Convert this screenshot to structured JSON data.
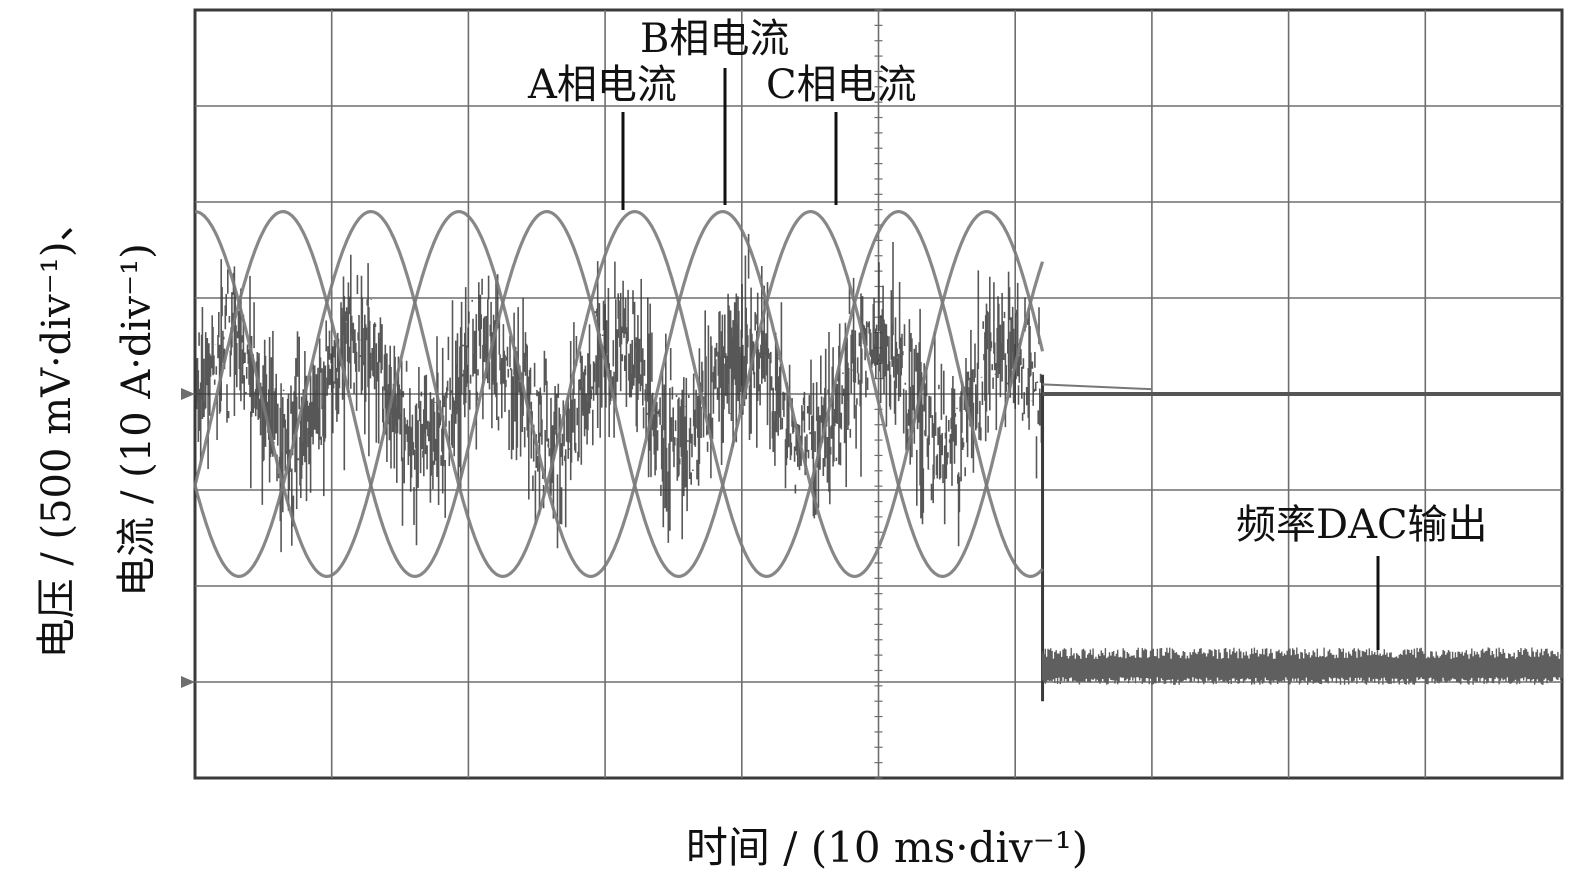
{
  "chart_data": {
    "type": "line",
    "title": "",
    "xlabel": "时间 / (10 ms·div⁻¹)",
    "ylabel_line1": "电压 / (500 mV·div⁻¹)、",
    "ylabel_line2": "电流 / (10 A·div⁻¹)",
    "x_unit": "div",
    "y_unit": "div",
    "xlim": [
      0,
      10
    ],
    "ylim": [
      0,
      8
    ],
    "grid": true,
    "grid_divisions": {
      "x": 10,
      "y": 8
    },
    "power_off_time_div": 6.2,
    "series": [
      {
        "name": "A相电流",
        "kind": "sine",
        "amplitude_div": 1.9,
        "period_div": 1.93,
        "phase_deg": 0,
        "center_div": 4,
        "ends_at_div": 6.2,
        "value_after_div": 4
      },
      {
        "name": "B相电流",
        "kind": "sine",
        "amplitude_div": 1.9,
        "period_div": 1.93,
        "phase_deg": 120,
        "center_div": 4,
        "ends_at_div": 6.2,
        "value_after_div": 4
      },
      {
        "name": "C相电流",
        "kind": "sine",
        "amplitude_div": 1.9,
        "period_div": 1.93,
        "phase_deg": 240,
        "center_div": 4,
        "ends_at_div": 6.2,
        "value_after_div": 4
      },
      {
        "name": "频率DAC输出",
        "kind": "noisy-step",
        "before_value_div": 4,
        "before_fluctuation_div": 2.6,
        "after_value_div": 1.2,
        "switch_at_div": 6.2
      }
    ],
    "annotations": [
      {
        "text": "A相电流",
        "points_to_div": [
          3.1,
          6.0
        ]
      },
      {
        "text": "B相电流",
        "points_to_div": [
          3.8,
          6.1
        ]
      },
      {
        "text": "C相电流",
        "points_to_div": [
          4.6,
          6.1
        ]
      },
      {
        "text": "频率DAC输出",
        "points_to_div": [
          8.8,
          1.4
        ]
      }
    ]
  },
  "colors": {
    "background": "#ffffff",
    "grid": "#6e6e6e",
    "frame": "#3a3a3a",
    "sine_trace": "#7a7a7a",
    "noise_trace": "#3a3a3a",
    "text": "#111111"
  }
}
